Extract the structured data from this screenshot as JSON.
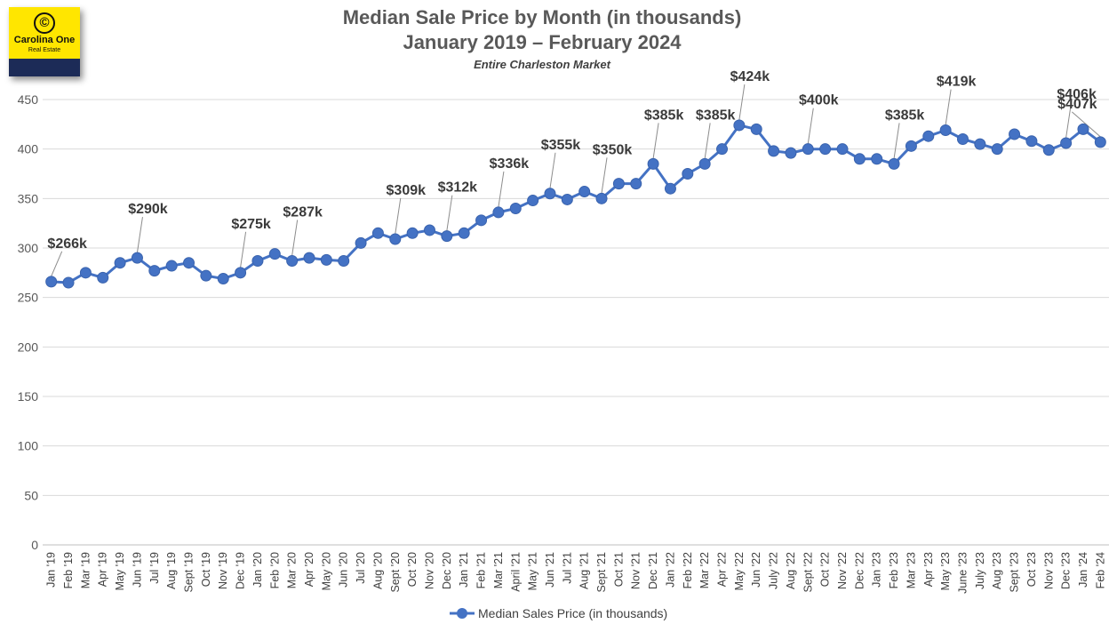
{
  "logo": {
    "mark": "©",
    "name": "Carolina One",
    "sub": "Real Estate"
  },
  "chart_data": {
    "type": "line",
    "title": "Median Sale Price by Month (in thousands)",
    "title_line1": "Median Sale Price by Month (in thousands)",
    "title_line2": "January 2019 – February 2024",
    "subtitle": "Entire Charleston Market",
    "xlabel": "",
    "ylabel": "",
    "ylim": [
      0,
      450
    ],
    "yticks": [
      0,
      50,
      100,
      150,
      200,
      250,
      300,
      350,
      400,
      450
    ],
    "grid": true,
    "legend_position": "bottom",
    "color": "#4472c4",
    "categories": [
      "Jan '19",
      "Feb '19",
      "Mar '19",
      "Apr '19",
      "May '19",
      "Jun '19",
      "Jul '19",
      "Aug '19",
      "Sept '19",
      "Oct '19",
      "Nov '19",
      "Dec '19",
      "Jan '20",
      "Feb '20",
      "Mar '20",
      "Apr '20",
      "May '20",
      "Jun '20",
      "Jul '20",
      "Aug '20",
      "Sept '20",
      "Oct '20",
      "Nov '20",
      "Dec '20",
      "Jan '21",
      "Feb '21",
      "Mar '21",
      "April '21",
      "May '21",
      "Jun '21",
      "Jul '21",
      "Aug '21",
      "Sept '21",
      "Oct '21",
      "Nov '21",
      "Dec '21",
      "Jan '22",
      "Feb '22",
      "Mar '22",
      "Apr '22",
      "May '22",
      "Jun '22",
      "July '22",
      "Aug '22",
      "Sept '22",
      "Oct '22",
      "Nov '22",
      "Dec '22",
      "Jan '23",
      "Feb '23",
      "Mar '23",
      "Apr '23",
      "May '23",
      "June '23",
      "July '23",
      "Aug '23",
      "Sept '23",
      "Oct '23",
      "Nov '23",
      "Dec '23",
      "Jan '24",
      "Feb '24"
    ],
    "series": [
      {
        "name": "Median Sales Price (in thousands)",
        "values": [
          266,
          265,
          275,
          270,
          285,
          290,
          277,
          282,
          285,
          272,
          269,
          275,
          287,
          294,
          287,
          290,
          288,
          287,
          305,
          315,
          309,
          315,
          318,
          312,
          315,
          328,
          336,
          340,
          348,
          355,
          349,
          357,
          350,
          365,
          365,
          385,
          360,
          375,
          385,
          400,
          424,
          420,
          398,
          396,
          400,
          400,
          400,
          390,
          390,
          385,
          403,
          413,
          419,
          410,
          405,
          400,
          415,
          408,
          399,
          406,
          420,
          407
        ]
      }
    ],
    "annotations": [
      {
        "label": "$266k",
        "index": 0
      },
      {
        "label": "$290k",
        "index": 5
      },
      {
        "label": "$275k",
        "index": 11
      },
      {
        "label": "$287k",
        "index": 14
      },
      {
        "label": "$309k",
        "index": 20
      },
      {
        "label": "$312k",
        "index": 23
      },
      {
        "label": "$336k",
        "index": 26
      },
      {
        "label": "$355k",
        "index": 29
      },
      {
        "label": "$350k",
        "index": 32
      },
      {
        "label": "$385k",
        "index": 35
      },
      {
        "label": "$385k",
        "index": 38
      },
      {
        "label": "$424k",
        "index": 40
      },
      {
        "label": "$400k",
        "index": 44
      },
      {
        "label": "$385k",
        "index": 49
      },
      {
        "label": "$419k",
        "index": 52
      },
      {
        "label": "$406k",
        "index": 59
      },
      {
        "label": "$407k",
        "index": 61
      }
    ]
  }
}
